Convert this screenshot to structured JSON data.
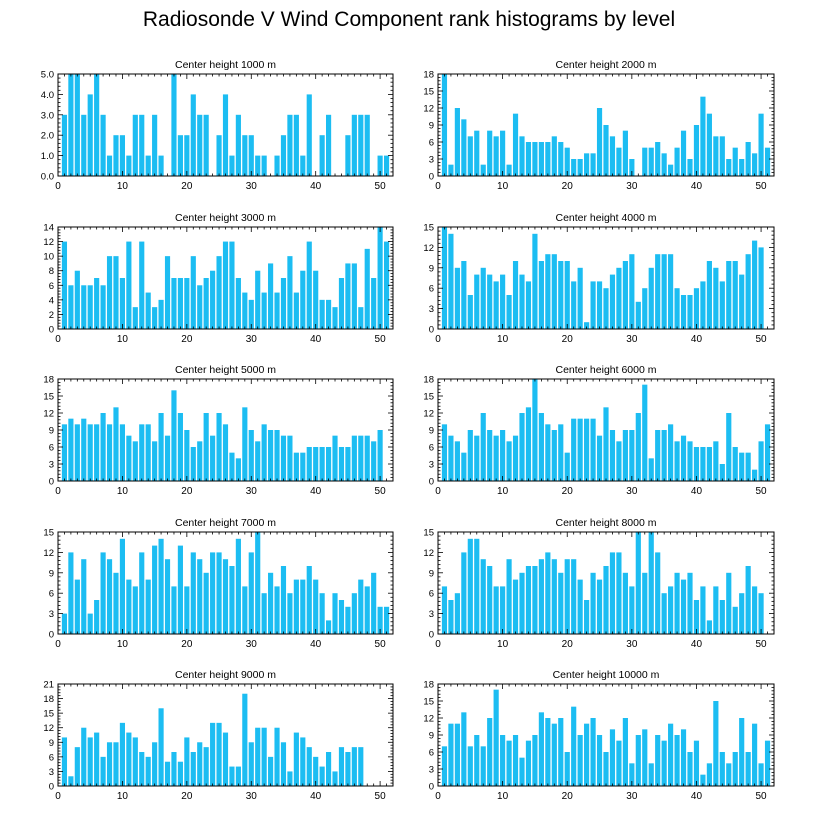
{
  "title": "Radiosonde V Wind Component rank histograms by level",
  "bar_color": "#1cbdf2",
  "chart_data": [
    {
      "type": "bar",
      "title": "Center height 1000 m",
      "ylim": [
        0,
        5
      ],
      "yticks": [
        0,
        1,
        2,
        3,
        4,
        5
      ],
      "ytick_labels": [
        "0.0",
        "1.0",
        "2.0",
        "3.0",
        "4.0",
        "5.0"
      ],
      "xlim": [
        0,
        52
      ],
      "xticks": [
        0,
        10,
        20,
        30,
        40,
        50
      ],
      "values": [
        3,
        5,
        5,
        3,
        4,
        5,
        3,
        1,
        2,
        2,
        1,
        3,
        3,
        1,
        3,
        1,
        0,
        5,
        2,
        2,
        4,
        3,
        3,
        0,
        2,
        4,
        1,
        3,
        2,
        2,
        1,
        1,
        0,
        1,
        2,
        3,
        3,
        1,
        4,
        0,
        2,
        3,
        0,
        0,
        2,
        3,
        3,
        3,
        0,
        1,
        1
      ]
    },
    {
      "type": "bar",
      "title": "Center height 2000 m",
      "ylim": [
        0,
        18
      ],
      "yticks": [
        0,
        3,
        6,
        9,
        12,
        15,
        18
      ],
      "ytick_labels": [
        "0",
        "3",
        "6",
        "9",
        "12",
        "15",
        "18"
      ],
      "xlim": [
        0,
        52
      ],
      "xticks": [
        0,
        10,
        20,
        30,
        40,
        50
      ],
      "values": [
        18,
        2,
        12,
        10,
        7,
        8,
        2,
        8,
        7,
        8,
        2,
        11,
        7,
        6,
        6,
        6,
        6,
        7,
        6,
        5,
        3,
        3,
        4,
        4,
        12,
        9,
        7,
        5,
        8,
        3,
        0,
        5,
        5,
        6,
        4,
        2,
        5,
        8,
        3,
        9,
        14,
        11,
        7,
        7,
        3,
        5,
        3,
        6,
        4,
        11,
        5
      ]
    },
    {
      "type": "bar",
      "title": "Center height 3000 m",
      "ylim": [
        0,
        14
      ],
      "yticks": [
        0,
        2,
        4,
        6,
        8,
        10,
        12,
        14
      ],
      "ytick_labels": [
        "0",
        "2",
        "4",
        "6",
        "8",
        "10",
        "12",
        "14"
      ],
      "xlim": [
        0,
        52
      ],
      "xticks": [
        0,
        10,
        20,
        30,
        40,
        50
      ],
      "values": [
        12,
        6,
        8,
        6,
        6,
        7,
        6,
        10,
        10,
        7,
        12,
        3,
        12,
        5,
        3,
        4,
        10,
        7,
        7,
        7,
        10,
        6,
        7,
        8,
        10,
        12,
        12,
        7,
        5,
        4,
        8,
        5,
        9,
        5,
        7,
        10,
        5,
        8,
        12,
        8,
        4,
        4,
        3,
        7,
        9,
        9,
        3,
        11,
        7,
        14,
        12
      ]
    },
    {
      "type": "bar",
      "title": "Center height 4000 m",
      "ylim": [
        0,
        15
      ],
      "yticks": [
        0,
        3,
        6,
        9,
        12,
        15
      ],
      "ytick_labels": [
        "0",
        "3",
        "6",
        "9",
        "12",
        "15"
      ],
      "xlim": [
        0,
        52
      ],
      "xticks": [
        0,
        10,
        20,
        30,
        40,
        50
      ],
      "values": [
        15,
        14,
        9,
        10,
        5,
        8,
        9,
        8,
        7,
        8,
        5,
        10,
        8,
        7,
        14,
        10,
        11,
        11,
        10,
        10,
        7,
        9,
        1,
        7,
        7,
        6,
        8,
        9,
        10,
        11,
        4,
        6,
        9,
        11,
        11,
        11,
        6,
        5,
        5,
        6,
        7,
        10,
        9,
        7,
        10,
        10,
        8,
        11,
        13,
        12,
        0
      ]
    },
    {
      "type": "bar",
      "title": "Center height 5000 m",
      "ylim": [
        0,
        18
      ],
      "yticks": [
        0,
        3,
        6,
        9,
        12,
        15,
        18
      ],
      "ytick_labels": [
        "0",
        "3",
        "6",
        "9",
        "12",
        "15",
        "18"
      ],
      "xlim": [
        0,
        52
      ],
      "xticks": [
        0,
        10,
        20,
        30,
        40,
        50
      ],
      "values": [
        10,
        11,
        10,
        11,
        10,
        10,
        12,
        10,
        13,
        10,
        8,
        7,
        10,
        10,
        7,
        12,
        8,
        16,
        12,
        9,
        6,
        7,
        12,
        8,
        12,
        10,
        5,
        4,
        13,
        9,
        7,
        10,
        9,
        9,
        8,
        8,
        5,
        5,
        6,
        6,
        6,
        6,
        8,
        6,
        6,
        8,
        8,
        8,
        7,
        9,
        0
      ]
    },
    {
      "type": "bar",
      "title": "Center height 6000 m",
      "ylim": [
        0,
        18
      ],
      "yticks": [
        0,
        3,
        6,
        9,
        12,
        15,
        18
      ],
      "ytick_labels": [
        "0",
        "3",
        "6",
        "9",
        "12",
        "15",
        "18"
      ],
      "xlim": [
        0,
        52
      ],
      "xticks": [
        0,
        10,
        20,
        30,
        40,
        50
      ],
      "values": [
        10,
        8,
        7,
        5,
        9,
        8,
        12,
        9,
        8,
        9,
        7,
        8,
        12,
        13,
        18,
        12,
        10,
        9,
        10,
        5,
        11,
        11,
        11,
        11,
        8,
        13,
        9,
        7,
        9,
        9,
        12,
        17,
        4,
        9,
        9,
        10,
        7,
        8,
        7,
        6,
        6,
        6,
        7,
        3,
        12,
        6,
        5,
        5,
        2,
        7,
        10
      ]
    },
    {
      "type": "bar",
      "title": "Center height 7000 m",
      "ylim": [
        0,
        15
      ],
      "yticks": [
        0,
        3,
        6,
        9,
        12,
        15
      ],
      "ytick_labels": [
        "0",
        "3",
        "6",
        "9",
        "12",
        "15"
      ],
      "xlim": [
        0,
        52
      ],
      "xticks": [
        0,
        10,
        20,
        30,
        40,
        50
      ],
      "values": [
        3,
        12,
        8,
        11,
        3,
        5,
        12,
        11,
        9,
        14,
        8,
        7,
        12,
        8,
        13,
        14,
        11,
        7,
        13,
        7,
        12,
        11,
        9,
        12,
        12,
        11,
        10,
        14,
        7,
        12,
        15,
        6,
        9,
        7,
        10,
        6,
        8,
        8,
        10,
        8,
        6,
        2,
        6,
        5,
        4,
        6,
        8,
        7,
        9,
        4,
        4
      ]
    },
    {
      "type": "bar",
      "title": "Center height 8000 m",
      "ylim": [
        0,
        15
      ],
      "yticks": [
        0,
        3,
        6,
        9,
        12,
        15
      ],
      "ytick_labels": [
        "0",
        "3",
        "6",
        "9",
        "12",
        "15"
      ],
      "xlim": [
        0,
        52
      ],
      "xticks": [
        0,
        10,
        20,
        30,
        40,
        50
      ],
      "values": [
        7,
        5,
        6,
        12,
        14,
        14,
        11,
        10,
        7,
        7,
        11,
        8,
        9,
        10,
        10,
        11,
        12,
        11,
        9,
        11,
        11,
        8,
        5,
        9,
        8,
        10,
        12,
        12,
        9,
        7,
        15,
        9,
        15,
        12,
        6,
        7,
        9,
        8,
        9,
        5,
        7,
        2,
        7,
        5,
        9,
        4,
        6,
        10,
        7,
        6,
        0
      ]
    },
    {
      "type": "bar",
      "title": "Center height 9000 m",
      "ylim": [
        0,
        21
      ],
      "yticks": [
        0,
        3,
        6,
        9,
        12,
        15,
        18,
        21
      ],
      "ytick_labels": [
        "0",
        "3",
        "6",
        "9",
        "12",
        "15",
        "18",
        "21"
      ],
      "xlim": [
        0,
        52
      ],
      "xticks": [
        0,
        10,
        20,
        30,
        40,
        50
      ],
      "values": [
        10,
        2,
        8,
        12,
        10,
        11,
        6,
        9,
        9,
        13,
        11,
        10,
        7,
        6,
        9,
        16,
        5,
        7,
        5,
        10,
        7,
        9,
        8,
        13,
        13,
        11,
        4,
        4,
        19,
        9,
        12,
        12,
        6,
        12,
        9,
        3,
        11,
        10,
        8,
        6,
        4,
        7,
        3,
        8,
        7,
        8,
        8,
        0,
        0,
        0,
        0
      ]
    },
    {
      "type": "bar",
      "title": "Center height 10000 m",
      "ylim": [
        0,
        18
      ],
      "yticks": [
        0,
        3,
        6,
        9,
        12,
        15,
        18
      ],
      "ytick_labels": [
        "0",
        "3",
        "6",
        "9",
        "12",
        "15",
        "18"
      ],
      "xlim": [
        0,
        52
      ],
      "xticks": [
        0,
        10,
        20,
        30,
        40,
        50
      ],
      "values": [
        7,
        11,
        11,
        13,
        7,
        9,
        7,
        12,
        17,
        9,
        8,
        9,
        5,
        8,
        9,
        13,
        12,
        11,
        12,
        6,
        14,
        9,
        11,
        12,
        9,
        6,
        10,
        8,
        12,
        4,
        9,
        10,
        4,
        9,
        8,
        11,
        9,
        10,
        6,
        8,
        2,
        4,
        15,
        6,
        4,
        6,
        12,
        6,
        11,
        4,
        8
      ]
    }
  ]
}
